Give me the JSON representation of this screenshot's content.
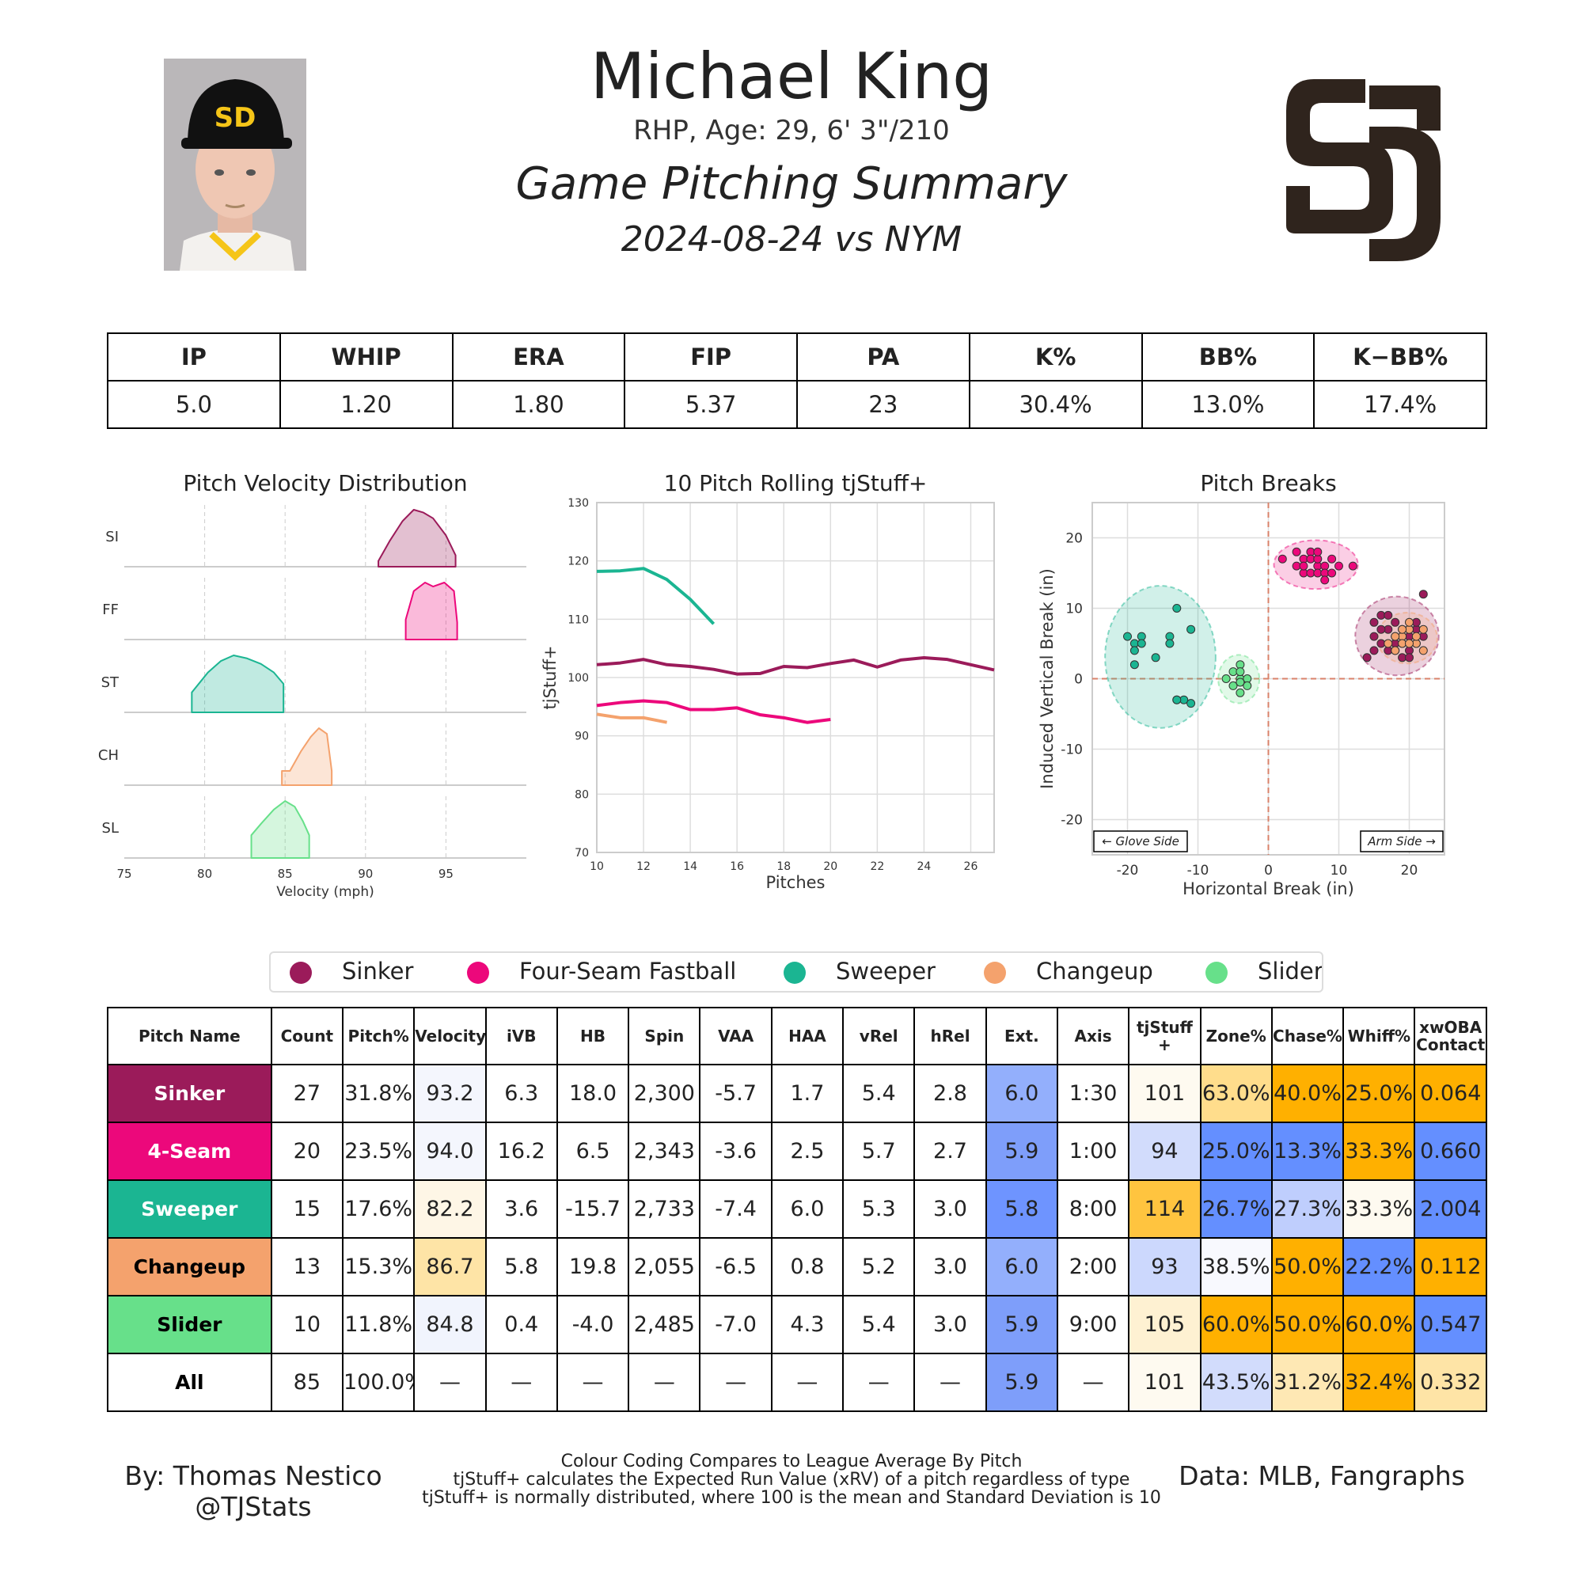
{
  "header": {
    "name": "Michael King",
    "bio": "RHP, Age: 29, 6' 3\"/210",
    "title": "Game Pitching Summary",
    "game": "2024-08-24 vs NYM",
    "logo_text": "SD",
    "team_color": "#2F241D"
  },
  "stats": {
    "headers": [
      "IP",
      "WHIP",
      "ERA",
      "FIP",
      "PA",
      "K%",
      "BB%",
      "K−BB%"
    ],
    "values": [
      "5.0",
      "1.20",
      "1.80",
      "5.37",
      "23",
      "30.4%",
      "13.0%",
      "17.4%"
    ]
  },
  "pitches": [
    {
      "code": "SI",
      "name": "Sinker",
      "color": "#9B1B5A"
    },
    {
      "code": "FF",
      "name": "Four-Seam Fastball",
      "color": "#EC087B"
    },
    {
      "code": "ST",
      "name": "Sweeper",
      "color": "#1BB592"
    },
    {
      "code": "CH",
      "name": "Changeup",
      "color": "#F4A26D"
    },
    {
      "code": "SL",
      "name": "Slider",
      "color": "#67E08A"
    }
  ],
  "chart_data": [
    {
      "type": "area",
      "title": "Pitch Velocity Distribution",
      "xlabel": "Velocity (mph)",
      "xlim": [
        75,
        100
      ],
      "xticks": [
        75,
        80,
        85,
        90,
        95
      ],
      "rows": [
        {
          "label": "SI",
          "x": [
            90.8,
            91.5,
            92.3,
            93.0,
            93.6,
            94.2,
            95.0,
            95.6
          ],
          "y": [
            0.1,
            0.45,
            0.8,
            1.0,
            0.95,
            0.85,
            0.55,
            0.2
          ]
        },
        {
          "label": "FF",
          "x": [
            92.5,
            93.0,
            93.7,
            94.2,
            94.9,
            95.5,
            95.7
          ],
          "y": [
            0.35,
            0.85,
            1.0,
            0.93,
            1.0,
            0.85,
            0.3
          ]
        },
        {
          "label": "ST",
          "x": [
            79.2,
            80.2,
            81.0,
            81.8,
            82.6,
            83.5,
            84.3,
            84.9
          ],
          "y": [
            0.35,
            0.7,
            0.9,
            1.0,
            0.95,
            0.85,
            0.7,
            0.5
          ]
        },
        {
          "label": "CH",
          "x": [
            84.8,
            85.3,
            86.0,
            86.6,
            87.1,
            87.6,
            87.9
          ],
          "y": [
            0.25,
            0.25,
            0.6,
            0.85,
            1.0,
            0.9,
            0.25
          ]
        },
        {
          "label": "SL",
          "x": [
            82.9,
            83.5,
            84.3,
            85.0,
            85.6,
            86.1,
            86.5
          ],
          "y": [
            0.4,
            0.6,
            0.85,
            1.0,
            0.9,
            0.65,
            0.4
          ]
        }
      ]
    },
    {
      "type": "line",
      "title": "10 Pitch Rolling tjStuff+",
      "xlabel": "Pitches",
      "ylabel": "tjStuff+",
      "xlim": [
        10,
        27
      ],
      "ylim": [
        70,
        130
      ],
      "xticks": [
        10,
        12,
        14,
        16,
        18,
        20,
        22,
        24,
        26
      ],
      "yticks": [
        70,
        80,
        90,
        100,
        110,
        120,
        130
      ],
      "series": [
        {
          "name": "Sinker",
          "x": [
            10,
            11,
            12,
            13,
            14,
            15,
            16,
            17,
            18,
            19,
            20,
            21,
            22,
            23,
            24,
            25,
            26,
            27
          ],
          "values": [
            102.2,
            102.5,
            103.1,
            102.2,
            101.9,
            101.4,
            100.6,
            100.7,
            101.9,
            101.7,
            102.4,
            103.0,
            101.8,
            103.0,
            103.4,
            103.1,
            102.2,
            101.3
          ]
        },
        {
          "name": "Four-Seam Fastball",
          "x": [
            10,
            11,
            12,
            13,
            14,
            15,
            16,
            17,
            18,
            19,
            20
          ],
          "values": [
            95.2,
            95.7,
            96.0,
            95.7,
            94.5,
            94.5,
            94.8,
            93.6,
            93.1,
            92.3,
            92.8
          ]
        },
        {
          "name": "Sweeper",
          "x": [
            10,
            11,
            12,
            13,
            14,
            15
          ],
          "values": [
            118.2,
            118.3,
            118.7,
            116.8,
            113.4,
            109.2
          ]
        },
        {
          "name": "Changeup",
          "x": [
            10,
            11,
            12,
            13
          ],
          "values": [
            93.7,
            93.1,
            93.1,
            92.3
          ]
        }
      ]
    },
    {
      "type": "scatter",
      "title": "Pitch Breaks",
      "xlabel": "Horizontal Break (in)",
      "ylabel": "Induced Vertical Break (in)",
      "xlim": [
        -25,
        25
      ],
      "ylim": [
        -25,
        25
      ],
      "xticks": [
        -20,
        -10,
        0,
        10,
        20
      ],
      "yticks": [
        -20,
        -10,
        0,
        10,
        20
      ],
      "annotations": [
        "← Glove Side",
        "Arm Side →"
      ],
      "series": [
        {
          "name": "Sinker",
          "points": [
            [
              15,
              8
            ],
            [
              16,
              9
            ],
            [
              17,
              7
            ],
            [
              18,
              6
            ],
            [
              19,
              5
            ],
            [
              20,
              6
            ],
            [
              21,
              7
            ],
            [
              22,
              12
            ],
            [
              14,
              3
            ],
            [
              15,
              6
            ],
            [
              16,
              5
            ],
            [
              17,
              4
            ],
            [
              18,
              8
            ],
            [
              19,
              7
            ],
            [
              20,
              4
            ],
            [
              21,
              5
            ],
            [
              22,
              6
            ],
            [
              16,
              7
            ],
            [
              17,
              9
            ],
            [
              18,
              5
            ],
            [
              19,
              3
            ],
            [
              20,
              3
            ],
            [
              21,
              8
            ],
            [
              15,
              4
            ],
            [
              18,
              4
            ],
            [
              19,
              6
            ],
            [
              20,
              7
            ]
          ]
        },
        {
          "name": "Four-Seam Fastball",
          "points": [
            [
              2,
              17
            ],
            [
              4,
              16
            ],
            [
              5,
              17
            ],
            [
              6,
              18
            ],
            [
              7,
              16
            ],
            [
              8,
              16
            ],
            [
              9,
              17
            ],
            [
              10,
              16
            ],
            [
              12,
              16
            ],
            [
              5,
              15
            ],
            [
              6,
              15
            ],
            [
              7,
              15
            ],
            [
              8,
              15
            ],
            [
              6,
              17
            ],
            [
              7,
              17
            ],
            [
              8,
              14
            ],
            [
              9,
              15
            ],
            [
              5,
              16
            ],
            [
              4,
              18
            ],
            [
              7,
              18
            ]
          ]
        },
        {
          "name": "Sweeper",
          "points": [
            [
              -20,
              6
            ],
            [
              -19,
              5
            ],
            [
              -18,
              6
            ],
            [
              -19,
              4
            ],
            [
              -18,
              5
            ],
            [
              -16,
              3
            ],
            [
              -14,
              6
            ],
            [
              -14,
              5
            ],
            [
              -13,
              10
            ],
            [
              -11,
              7
            ],
            [
              -19,
              2
            ],
            [
              -13,
              -3
            ],
            [
              -12,
              -3
            ],
            [
              -13,
              -3
            ],
            [
              -11,
              -3.5
            ]
          ]
        },
        {
          "name": "Changeup",
          "points": [
            [
              17,
              5
            ],
            [
              18,
              4
            ],
            [
              19,
              6
            ],
            [
              20,
              7
            ],
            [
              21,
              5
            ],
            [
              22,
              4
            ],
            [
              19,
              5
            ],
            [
              20,
              8
            ],
            [
              21,
              6
            ],
            [
              22,
              7
            ],
            [
              18,
              6
            ],
            [
              20,
              5
            ],
            [
              19,
              7
            ]
          ]
        },
        {
          "name": "Slider",
          "points": [
            [
              -4,
              0
            ],
            [
              -5,
              1
            ],
            [
              -4,
              2
            ],
            [
              -5,
              -1
            ],
            [
              -4,
              -2
            ],
            [
              -3,
              0
            ],
            [
              -4,
              1
            ],
            [
              -6,
              0
            ],
            [
              -3,
              -1
            ],
            [
              -4,
              -0.5
            ]
          ]
        }
      ]
    }
  ],
  "legend": [
    "Sinker",
    "Four-Seam Fastball",
    "Sweeper",
    "Changeup",
    "Slider"
  ],
  "pitch_table": {
    "headers": [
      "Pitch Name",
      "Count",
      "Pitch%",
      "Velocity",
      "iVB",
      "HB",
      "Spin",
      "VAA",
      "HAA",
      "vRel",
      "hRel",
      "Ext.",
      "Axis",
      "tjStuff +",
      "Zone%",
      "Chase%",
      "Whiff%",
      "xwOBA Contact"
    ],
    "rows": [
      {
        "name": "Sinker",
        "color": "#9B1B5A",
        "text": "#fff",
        "cells": [
          "27",
          "31.8%",
          "93.2",
          "6.3",
          "18.0",
          "2,300",
          "-5.7",
          "1.7",
          "5.4",
          "2.8",
          "6.0",
          "1:30",
          "101",
          "63.0%",
          "40.0%",
          "25.0%",
          "0.064"
        ],
        "bg": {
          "Velocity": "#F4F6FD",
          "Ext.": "#93AFFC",
          "tjStuff +": "#FEFAF0",
          "Zone%": "#FFDD8C",
          "Chase%": "#FFB000",
          "Whiff%": "#FFB000",
          "xwOBA Contact": "#FFB000"
        }
      },
      {
        "name": "4-Seam",
        "color": "#EC087B",
        "text": "#fff",
        "cells": [
          "20",
          "23.5%",
          "94.0",
          "16.2",
          "6.5",
          "2,343",
          "-3.6",
          "2.5",
          "5.7",
          "2.7",
          "5.9",
          "1:00",
          "94",
          "25.0%",
          "13.3%",
          "33.3%",
          "0.660"
        ],
        "bg": {
          "Velocity": "#F4F6FD",
          "Ext.": "#7E9EFA",
          "tjStuff +": "#D2DCFC",
          "Zone%": "#648FFF",
          "Chase%": "#648FFF",
          "Whiff%": "#FFB000",
          "xwOBA Contact": "#648FFF"
        }
      },
      {
        "name": "Sweeper",
        "color": "#1BB592",
        "text": "#fff",
        "cells": [
          "15",
          "17.6%",
          "82.2",
          "3.6",
          "-15.7",
          "2,733",
          "-7.4",
          "6.0",
          "5.3",
          "3.0",
          "5.8",
          "8:00",
          "114",
          "26.7%",
          "27.3%",
          "33.3%",
          "2.004"
        ],
        "bg": {
          "Velocity": "#FEF6E6",
          "Ext.": "#6E94FF",
          "tjStuff +": "#FFC43F",
          "Zone%": "#648FFF",
          "Chase%": "#BFCEFD",
          "Whiff%": "#FEFAF0",
          "xwOBA Contact": "#648FFF"
        }
      },
      {
        "name": "Changeup",
        "color": "#F4A26D",
        "text": "#000",
        "cells": [
          "13",
          "15.3%",
          "86.7",
          "5.8",
          "19.8",
          "2,055",
          "-6.5",
          "0.8",
          "5.2",
          "3.0",
          "6.0",
          "2:00",
          "93",
          "38.5%",
          "50.0%",
          "22.2%",
          "0.112"
        ],
        "bg": {
          "Velocity": "#FEE4A6",
          "Ext.": "#93AFFC",
          "tjStuff +": "#CCD8FD",
          "Zone%": "#F8F9FE",
          "Chase%": "#FFB000",
          "Whiff%": "#648FFF",
          "xwOBA Contact": "#FFB000"
        }
      },
      {
        "name": "Slider",
        "color": "#67E08A",
        "text": "#000",
        "cells": [
          "10",
          "11.8%",
          "84.8",
          "0.4",
          "-4.0",
          "2,485",
          "-7.0",
          "4.3",
          "5.4",
          "3.0",
          "5.9",
          "9:00",
          "105",
          "60.0%",
          "50.0%",
          "60.0%",
          "0.547"
        ],
        "bg": {
          "Velocity": "#F1F4FD",
          "Ext.": "#7E9EFA",
          "tjStuff +": "#FEF1D2",
          "Zone%": "#FFB000",
          "Chase%": "#FFB000",
          "Whiff%": "#FFB000",
          "xwOBA Contact": "#648FFF"
        }
      },
      {
        "name": "All",
        "color": "#fff",
        "text": "#000",
        "cells": [
          "85",
          "100.0%",
          "—",
          "—",
          "—",
          "—",
          "—",
          "—",
          "—",
          "—",
          "5.9",
          "—",
          "101",
          "43.5%",
          "31.2%",
          "32.4%",
          "0.332"
        ],
        "bg": {
          "Ext.": "#7E9EFA",
          "tjStuff +": "#FEFAF0",
          "Zone%": "#D2DCFC",
          "Chase%": "#FEE8B4",
          "Whiff%": "#FFB000",
          "xwOBA Contact": "#FEE4A6"
        }
      }
    ]
  },
  "footer": {
    "author": "By: Thomas Nestico",
    "handle": "@TJStats",
    "notes": [
      "Colour Coding Compares to League Average By Pitch",
      "tjStuff+ calculates the Expected Run Value (xRV) of a pitch regardless of type",
      "tjStuff+ is normally distributed, where 100 is the mean and Standard Deviation is 10"
    ],
    "source": "Data: MLB, Fangraphs"
  }
}
